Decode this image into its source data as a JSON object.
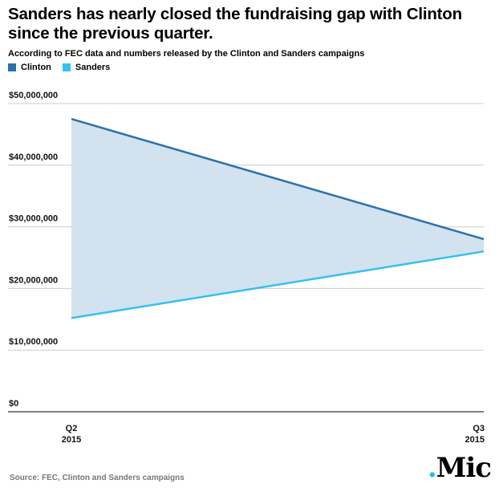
{
  "title": "Sanders has nearly closed the fundraising gap with Clinton since the previous quarter.",
  "subtitle": "According to FEC data and numbers released by the Clinton and Sanders campaigns",
  "source": "Source: FEC, Clinton and Sanders campaigns",
  "logo": {
    "dot": ".",
    "text": "Mic"
  },
  "colors": {
    "clinton": "#2a72ad",
    "sanders": "#33c0f3",
    "fill": "#d3e2ef",
    "grid": "#cccccc"
  },
  "chart_data": {
    "type": "area",
    "title": "Sanders has nearly closed the fundraising gap with Clinton since the previous quarter.",
    "subtitle": "According to FEC data and numbers released by the Clinton and Sanders campaigns",
    "categories": [
      "Q2 2015",
      "Q3 2015"
    ],
    "x_tick_labels": [
      {
        "line1": "Q2",
        "line2": "2015"
      },
      {
        "line1": "Q3",
        "line2": "2015"
      }
    ],
    "series": [
      {
        "name": "Clinton",
        "color": "#2a72ad",
        "values": [
          47500000,
          28000000
        ]
      },
      {
        "name": "Sanders",
        "color": "#33c0f3",
        "values": [
          15200000,
          26000000
        ]
      }
    ],
    "y_ticks": [
      0,
      10000000,
      20000000,
      30000000,
      40000000,
      50000000
    ],
    "y_tick_labels": [
      "$0",
      "$10,000,000",
      "$20,000,000",
      "$30,000,000",
      "$40,000,000",
      "$50,000,000"
    ],
    "ylim": [
      0,
      50000000
    ],
    "shaded_gap_between_series": true,
    "grid": true,
    "legend_position": "top-left"
  }
}
